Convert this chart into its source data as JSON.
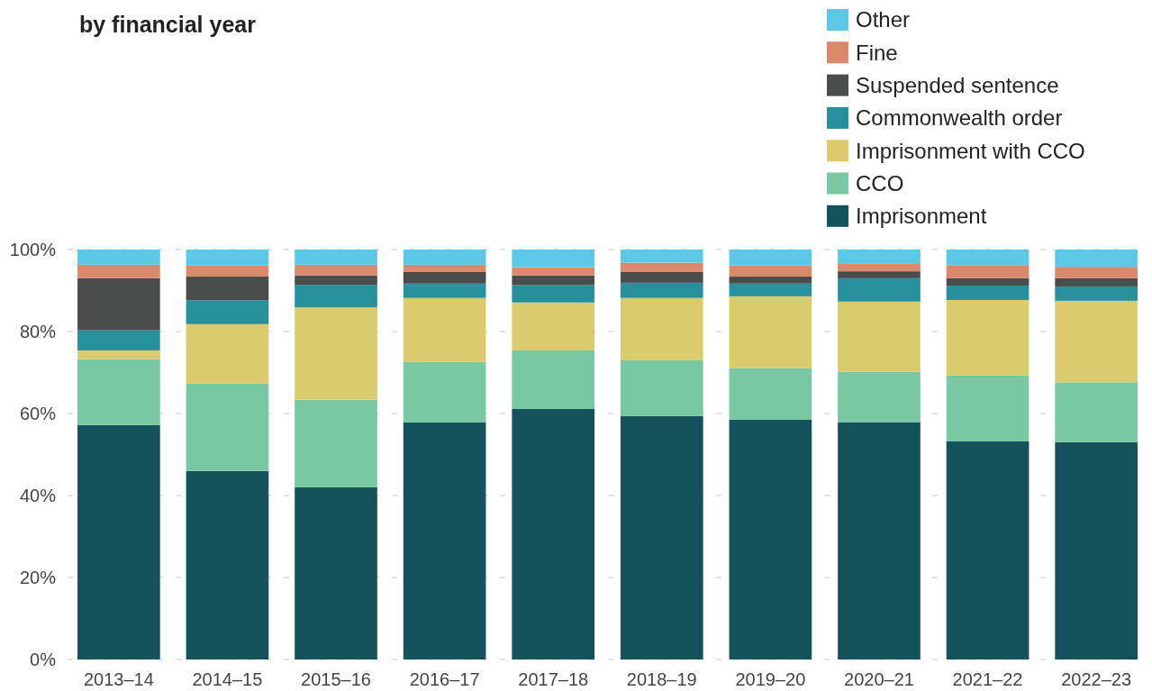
{
  "chart_data": {
    "type": "bar",
    "stacked": true,
    "title": "by financial year",
    "categories": [
      "2013–14",
      "2014–15",
      "2015–16",
      "2016–17",
      "2017–18",
      "2018–19",
      "2019–20",
      "2020–21",
      "2021–22",
      "2022–23"
    ],
    "series": [
      {
        "name": "Imprisonment",
        "color": "#14525c",
        "values": [
          57.2,
          46.0,
          42.0,
          57.8,
          61.1,
          59.4,
          58.5,
          57.9,
          53.2,
          53.0
        ]
      },
      {
        "name": "CCO",
        "color": "#78c8a2",
        "values": [
          16.1,
          21.3,
          21.4,
          14.8,
          14.3,
          13.6,
          12.6,
          12.3,
          16.1,
          14.6
        ]
      },
      {
        "name": "Imprisonment with CCO",
        "color": "#dacb6c",
        "values": [
          2.1,
          14.5,
          22.5,
          15.6,
          11.7,
          15.2,
          17.5,
          17.1,
          18.4,
          19.9
        ]
      },
      {
        "name": "Commonwealth order",
        "color": "#27909c",
        "values": [
          4.9,
          5.8,
          5.5,
          3.5,
          4.2,
          3.7,
          3.1,
          5.7,
          3.5,
          3.5
        ]
      },
      {
        "name": "Suspended sentence",
        "color": "#4b4d4d",
        "values": [
          12.7,
          5.8,
          2.3,
          2.8,
          2.4,
          2.6,
          1.7,
          1.7,
          1.8,
          2.0
        ]
      },
      {
        "name": "Fine",
        "color": "#db896c",
        "values": [
          3.3,
          2.7,
          2.6,
          1.8,
          2.0,
          2.3,
          2.7,
          1.8,
          3.2,
          2.8
        ]
      },
      {
        "name": "Other",
        "color": "#5bc8e8",
        "values": [
          3.7,
          3.9,
          3.7,
          3.7,
          4.3,
          3.2,
          3.9,
          3.5,
          3.8,
          4.2
        ]
      }
    ],
    "ylim": [
      0,
      100
    ],
    "yticks": [
      {
        "value": 0,
        "label": "0%"
      },
      {
        "value": 20,
        "label": "20%"
      },
      {
        "value": 40,
        "label": "40%"
      },
      {
        "value": 60,
        "label": "60%"
      },
      {
        "value": 80,
        "label": "80%"
      },
      {
        "value": 100,
        "label": "100%"
      }
    ],
    "grid": "y",
    "legend": "top right"
  }
}
